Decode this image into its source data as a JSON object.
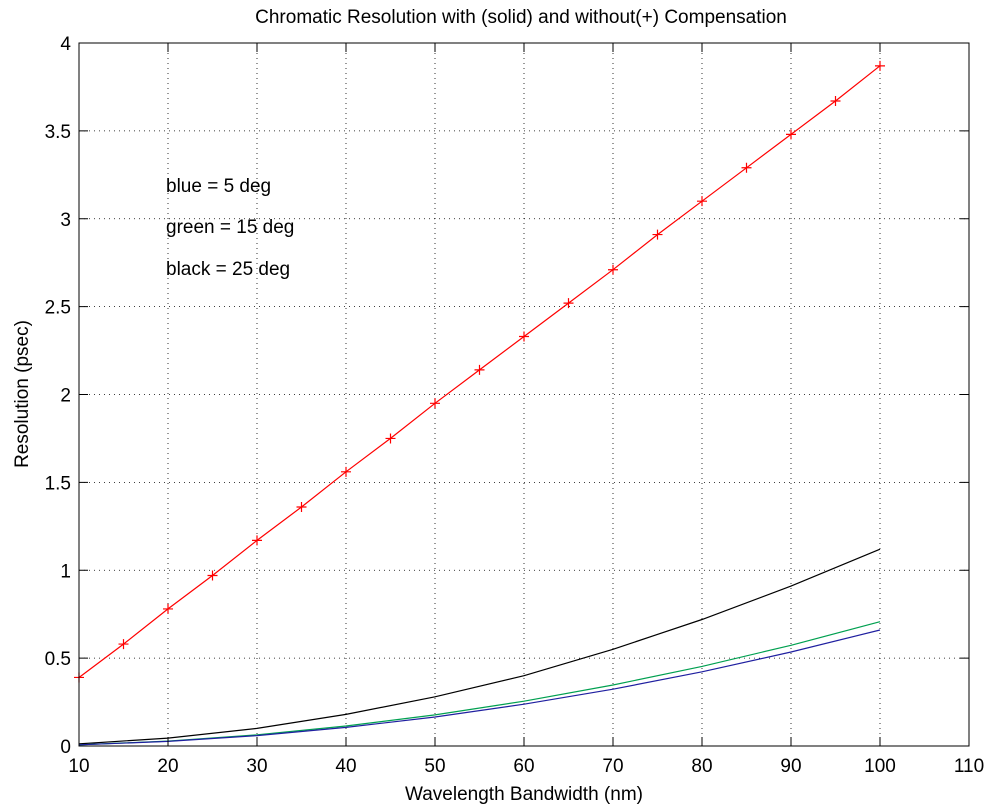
{
  "chart_data": {
    "type": "line",
    "title": "Chromatic Resolution with (solid) and without(+) Compensation",
    "xlabel": "Wavelength Bandwidth (nm)",
    "ylabel": "Resolution (psec)",
    "xlim": [
      10,
      110
    ],
    "ylim": [
      0,
      4
    ],
    "xticks": [
      10,
      20,
      30,
      40,
      50,
      60,
      70,
      80,
      90,
      100,
      110
    ],
    "yticks": [
      0,
      0.5,
      1,
      1.5,
      2,
      2.5,
      3,
      3.5,
      4
    ],
    "grid": true,
    "annotations": [
      "blue = 5 deg",
      "green = 15 deg",
      "black = 25 deg"
    ],
    "series": [
      {
        "color": "#ff0000",
        "marker": "+",
        "line": "solid",
        "x": [
          10,
          15,
          20,
          25,
          30,
          35,
          40,
          45,
          50,
          55,
          60,
          65,
          70,
          75,
          80,
          85,
          90,
          95,
          100
        ],
        "y": [
          0.39,
          0.58,
          0.78,
          0.97,
          1.17,
          1.36,
          1.56,
          1.75,
          1.95,
          2.14,
          2.33,
          2.52,
          2.71,
          2.91,
          3.1,
          3.29,
          3.48,
          3.67,
          3.87
        ]
      },
      {
        "color": "#000000",
        "line": "solid",
        "x": [
          10,
          20,
          30,
          40,
          50,
          60,
          70,
          80,
          90,
          100
        ],
        "y": [
          0.012,
          0.045,
          0.1,
          0.18,
          0.28,
          0.4,
          0.55,
          0.72,
          0.91,
          1.12
        ]
      },
      {
        "color": "#00a050",
        "line": "solid",
        "x": [
          10,
          20,
          30,
          40,
          50,
          60,
          70,
          80,
          90,
          100
        ],
        "y": [
          0.007,
          0.028,
          0.064,
          0.114,
          0.177,
          0.255,
          0.347,
          0.453,
          0.573,
          0.707
        ]
      },
      {
        "color": "#1f1fa0",
        "line": "solid",
        "x": [
          10,
          20,
          30,
          40,
          50,
          60,
          70,
          80,
          90,
          100
        ],
        "y": [
          0.0066,
          0.026,
          0.059,
          0.106,
          0.165,
          0.238,
          0.323,
          0.422,
          0.535,
          0.66
        ]
      }
    ]
  }
}
